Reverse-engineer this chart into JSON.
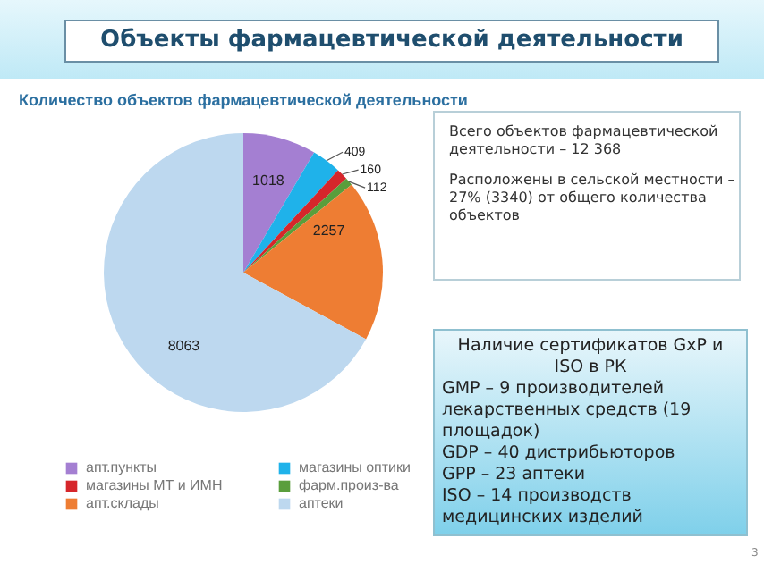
{
  "chart_data": {
    "type": "pie",
    "title": "Объекты фармацевтической деятельности",
    "subtitle": "Количество объектов фармацевтической деятельности",
    "categories": [
      "апт.пункты",
      "магазины оптики",
      "магазины МТ и ИМН",
      "фарм.произ-ва",
      "апт.склады",
      "аптеки"
    ],
    "values": [
      1018,
      409,
      160,
      112,
      2257,
      8063
    ],
    "colors": [
      "#a47fd2",
      "#1fb2ea",
      "#d6262b",
      "#5a9e3c",
      "#ee7d33",
      "#bdd8ef"
    ],
    "data_labels": true,
    "legend": "bottom",
    "annotations": [
      "Всего объектов фармацевтической деятельности – 12 368",
      "Расположены в сельской местности – 27% (3340) от общего количества объектов",
      "Наличие сертификатов GxP и ISO в РК",
      "GMP – 9 производителей лекарственных средств (19 площадок)",
      "GDP – 40 дистрибьюторов",
      "GPP – 23 аптеки",
      "ISO – 14 производств медицинских изделий",
      "3"
    ]
  }
}
